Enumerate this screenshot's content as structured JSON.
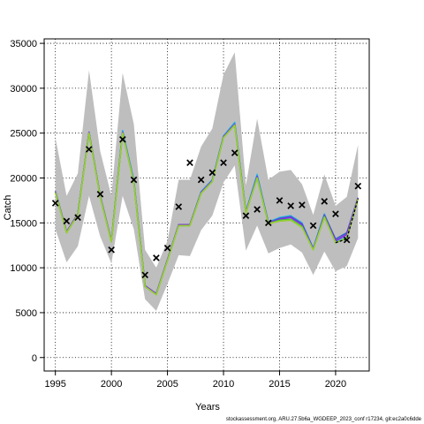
{
  "chart_data": {
    "type": "line",
    "xlabel": "Years",
    "ylabel": "Catch",
    "xlim": [
      1994.0,
      2023.0
    ],
    "ylim": [
      -1500,
      35500
    ],
    "xticks": [
      1995,
      2000,
      2005,
      2010,
      2015,
      2020
    ],
    "yticks": [
      0,
      5000,
      10000,
      15000,
      20000,
      25000,
      30000,
      35000
    ],
    "grid": true,
    "grid_style": "dotted",
    "x": [
      1995,
      1996,
      1997,
      1998,
      1999,
      2000,
      2001,
      2002,
      2003,
      2004,
      2005,
      2006,
      2007,
      2008,
      2009,
      2010,
      2011,
      2012,
      2013,
      2014,
      2015,
      2016,
      2017,
      2018,
      2019,
      2020,
      2021,
      2022
    ],
    "band": {
      "upper": [
        24500,
        18000,
        20500,
        32000,
        23000,
        18000,
        31700,
        26000,
        12000,
        10000,
        13000,
        19800,
        19800,
        23500,
        25500,
        31500,
        34000,
        19200,
        26600,
        19800,
        20700,
        20900,
        19300,
        15900,
        20400,
        16900,
        17900,
        23700
      ],
      "lower": [
        14300,
        10600,
        12400,
        18000,
        13500,
        10500,
        18000,
        14300,
        6500,
        5200,
        8200,
        11400,
        11300,
        14200,
        15800,
        19500,
        21400,
        11900,
        14700,
        11600,
        12200,
        12600,
        11700,
        9200,
        11800,
        9600,
        10200,
        13300
      ],
      "color": "#bebebe"
    },
    "series": [
      {
        "color": "#2ab5e8",
        "values": [
          18500,
          14000,
          16000,
          25100,
          18000,
          13000,
          25300,
          19800,
          8000,
          7100,
          10900,
          14800,
          14800,
          18500,
          19800,
          24700,
          26200,
          16300,
          20400,
          15100,
          15600,
          15800,
          15000,
          12200,
          16000,
          12900,
          13400,
          17800
        ]
      },
      {
        "color": "#3a5fcd",
        "values": [
          18500,
          14000,
          16000,
          25100,
          18000,
          13000,
          25100,
          19600,
          8000,
          7100,
          10900,
          14800,
          14800,
          18400,
          19700,
          24600,
          26000,
          16200,
          20200,
          15000,
          15500,
          15700,
          14900,
          12100,
          15900,
          13200,
          13900,
          17800
        ]
      },
      {
        "color": "#8a2be2",
        "values": [
          18500,
          14000,
          16000,
          25100,
          18000,
          13000,
          25100,
          19600,
          8000,
          7100,
          10900,
          14800,
          14800,
          18400,
          19700,
          24600,
          26000,
          16200,
          20100,
          15000,
          15400,
          15600,
          14800,
          12100,
          15800,
          13000,
          13700,
          17800
        ]
      },
      {
        "color": "#32cd32",
        "values": [
          18400,
          13900,
          15900,
          25000,
          17900,
          12900,
          25000,
          19500,
          7900,
          7000,
          10800,
          14700,
          14700,
          18300,
          19600,
          24500,
          25900,
          16100,
          20000,
          14900,
          15300,
          15400,
          14600,
          12000,
          15700,
          12800,
          13300,
          17700
        ]
      },
      {
        "color": "#9acd32",
        "values": [
          18400,
          13900,
          15900,
          25000,
          17900,
          12900,
          25000,
          19500,
          7900,
          7000,
          10800,
          14700,
          14700,
          18300,
          19600,
          24500,
          25900,
          16100,
          20000,
          14900,
          15200,
          15300,
          14500,
          12000,
          15600,
          12800,
          13300,
          17700
        ]
      },
      {
        "color": "#000000",
        "dashed": true,
        "x": [
          2020,
          2021,
          2022
        ],
        "values": [
          12800,
          13200,
          17700
        ]
      }
    ],
    "observed": {
      "marker": "x",
      "x": [
        1995,
        1996,
        1997,
        1998,
        1999,
        2000,
        2001,
        2002,
        2003,
        2004,
        2005,
        2006,
        2007,
        2008,
        2009,
        2010,
        2011,
        2012,
        2013,
        2014,
        2015,
        2016,
        2017,
        2018,
        2019,
        2020,
        2021,
        2022
      ],
      "values": [
        17200,
        15200,
        15600,
        23200,
        18200,
        12000,
        24300,
        19800,
        9200,
        11100,
        12200,
        16800,
        21700,
        19800,
        20600,
        21700,
        22800,
        15800,
        16500,
        15000,
        17500,
        16900,
        17000,
        14700,
        17400,
        16000,
        13100,
        19100
      ]
    }
  },
  "footer": "stockassessment.org, ARU.27.5b6a_WGDEEP_2023_conf r17234, git:ec2a0c6dde"
}
